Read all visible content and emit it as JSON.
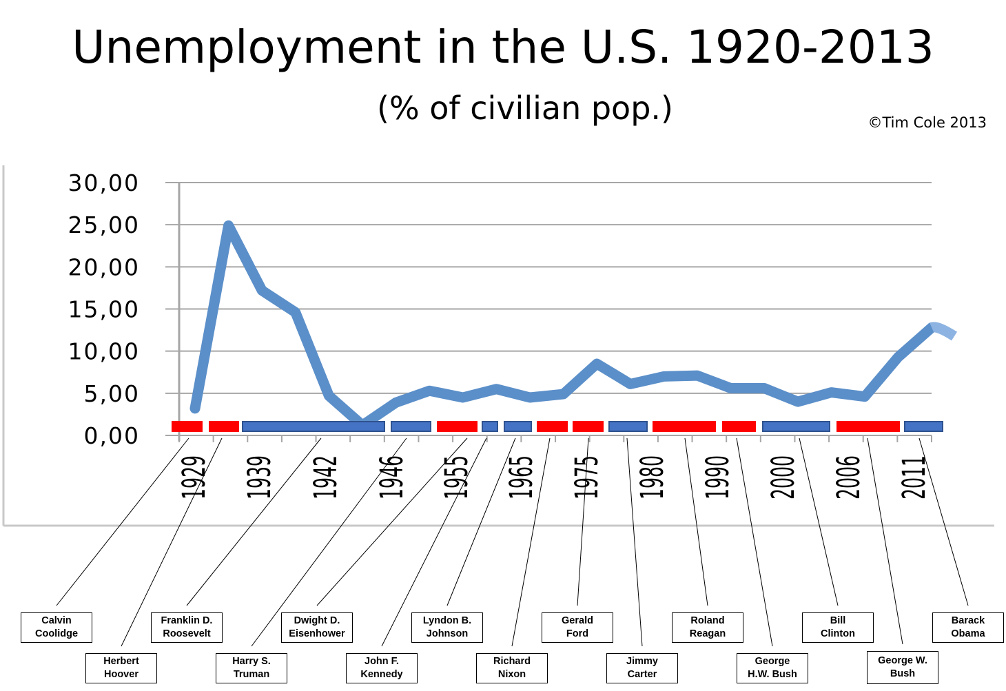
{
  "header": {
    "title": "Unemployment in the U.S. 1920-2013",
    "subtitle": "(% of civilian pop.)",
    "copyright": "©Tim Cole 2013"
  },
  "colors": {
    "line": "#5b8fc9",
    "line_tail": "#8db3e2",
    "republican": "#ff0000",
    "democrat": "#4472c4",
    "grid": "#a6a6a6"
  },
  "chart_data": {
    "type": "line",
    "title": "Unemployment in the U.S. 1920-2013",
    "subtitle": "(% of civilian pop.)",
    "ylim": [
      0,
      30
    ],
    "yticks": [
      0,
      5,
      10,
      15,
      20,
      25,
      30
    ],
    "ytick_labels": [
      "0,00",
      "5,00",
      "10,00",
      "15,00",
      "20,00",
      "25,00",
      "30,00"
    ],
    "xtick_labels": [
      "1929",
      "1939",
      "1942",
      "1946",
      "1955",
      "1965",
      "1975",
      "1980",
      "1990",
      "2000",
      "2006",
      "2011"
    ],
    "grid": true,
    "series": [
      {
        "values": [
          3.2,
          24.9,
          17.2,
          14.6,
          4.7,
          1.2,
          3.9,
          5.3,
          4.5,
          5.5,
          4.5,
          4.9,
          8.5,
          6.1,
          7.0,
          7.1,
          5.6,
          5.6,
          4.0,
          5.1,
          4.6,
          9.3,
          12.8
        ]
      }
    ],
    "president_bars": [
      {
        "party": "R"
      },
      {
        "party": "R"
      },
      {
        "party": "D"
      },
      {
        "party": "D"
      },
      {
        "party": "R"
      },
      {
        "party": "D"
      },
      {
        "party": "D"
      },
      {
        "party": "R"
      },
      {
        "party": "R"
      },
      {
        "party": "D"
      },
      {
        "party": "R"
      },
      {
        "party": "R"
      },
      {
        "party": "D"
      },
      {
        "party": "R"
      },
      {
        "party": "D"
      }
    ]
  },
  "presidents": [
    {
      "name": "Calvin\nCoolidge"
    },
    {
      "name": "Herbert\nHoover"
    },
    {
      "name": "Franklin D.\nRoosevelt"
    },
    {
      "name": "Harry S.\nTruman"
    },
    {
      "name": "Dwight D.\nEisenhower"
    },
    {
      "name": "John F.\nKennedy"
    },
    {
      "name": "Lyndon B.\nJohnson"
    },
    {
      "name": "Richard\nNixon"
    },
    {
      "name": "Gerald\nFord"
    },
    {
      "name": "Jimmy\nCarter"
    },
    {
      "name": "Roland\nReagan"
    },
    {
      "name": "George\nH.W. Bush"
    },
    {
      "name": "Bill\nClinton"
    },
    {
      "name": "George W.\nBush"
    },
    {
      "name": "Barack\nObama"
    }
  ]
}
